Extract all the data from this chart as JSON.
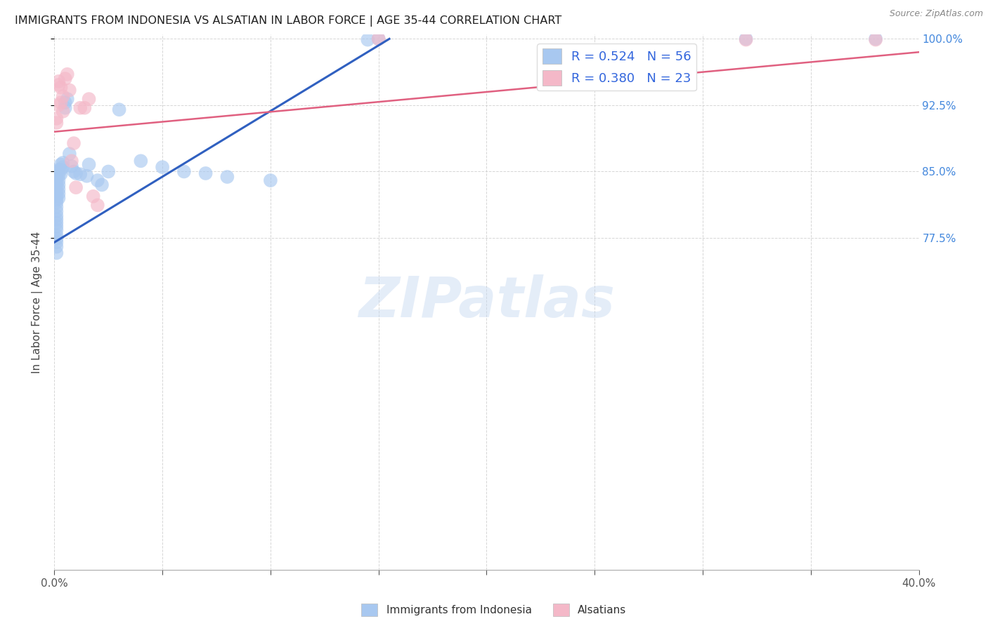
{
  "title": "IMMIGRANTS FROM INDONESIA VS ALSATIAN IN LABOR FORCE | AGE 35-44 CORRELATION CHART",
  "source": "Source: ZipAtlas.com",
  "ylabel": "In Labor Force | Age 35-44",
  "watermark": "ZIPatlas",
  "xlim": [
    0.0,
    0.4
  ],
  "ylim": [
    0.4,
    1.005
  ],
  "yticks": [
    1.0,
    0.925,
    0.85,
    0.775
  ],
  "yticklabels": [
    "100.0%",
    "92.5%",
    "85.0%",
    "77.5%"
  ],
  "legend_r_blue": "R = 0.524",
  "legend_n_blue": "N = 56",
  "legend_r_pink": "R = 0.380",
  "legend_n_pink": "N = 23",
  "blue_color": "#a8c8f0",
  "pink_color": "#f4b8c8",
  "blue_line_color": "#3060c0",
  "pink_line_color": "#e06080",
  "grid_color": "#cccccc",
  "title_color": "#202020",
  "right_label_color": "#4488dd",
  "background": "#ffffff",
  "indonesia_x": [
    0.001,
    0.001,
    0.001,
    0.001,
    0.001,
    0.001,
    0.001,
    0.001,
    0.001,
    0.001,
    0.001,
    0.001,
    0.001,
    0.001,
    0.001,
    0.001,
    0.001,
    0.001,
    0.001,
    0.001,
    0.002,
    0.002,
    0.002,
    0.002,
    0.002,
    0.002,
    0.002,
    0.003,
    0.003,
    0.003,
    0.004,
    0.004,
    0.005,
    0.005,
    0.006,
    0.007,
    0.008,
    0.009,
    0.01,
    0.012,
    0.015,
    0.016,
    0.02,
    0.022,
    0.025,
    0.03,
    0.04,
    0.05,
    0.06,
    0.07,
    0.08,
    0.1,
    0.145,
    0.15,
    0.32,
    0.38
  ],
  "indonesia_y": [
    0.85,
    0.845,
    0.84,
    0.835,
    0.828,
    0.822,
    0.818,
    0.815,
    0.81,
    0.805,
    0.8,
    0.796,
    0.792,
    0.788,
    0.784,
    0.778,
    0.774,
    0.77,
    0.765,
    0.758,
    0.852,
    0.846,
    0.84,
    0.835,
    0.83,
    0.825,
    0.82,
    0.858,
    0.852,
    0.847,
    0.86,
    0.855,
    0.922,
    0.928,
    0.932,
    0.87,
    0.856,
    0.85,
    0.848,
    0.847,
    0.845,
    0.858,
    0.84,
    0.835,
    0.85,
    0.92,
    0.862,
    0.855,
    0.85,
    0.848,
    0.844,
    0.84,
    0.999,
    1.0,
    1.0,
    1.0
  ],
  "alsatian_x": [
    0.001,
    0.001,
    0.002,
    0.002,
    0.002,
    0.003,
    0.003,
    0.004,
    0.004,
    0.005,
    0.006,
    0.007,
    0.008,
    0.009,
    0.01,
    0.012,
    0.014,
    0.016,
    0.018,
    0.02,
    0.15,
    0.32,
    0.38
  ],
  "alsatian_y": [
    0.91,
    0.905,
    0.952,
    0.948,
    0.925,
    0.945,
    0.928,
    0.935,
    0.918,
    0.955,
    0.96,
    0.942,
    0.862,
    0.882,
    0.832,
    0.922,
    0.922,
    0.932,
    0.822,
    0.812,
    1.0,
    0.999,
    0.999
  ],
  "blue_line_x0": 0.0,
  "blue_line_y0": 0.77,
  "blue_line_x1": 0.155,
  "blue_line_y1": 1.0,
  "pink_line_x0": 0.0,
  "pink_line_y0": 0.895,
  "pink_line_x1": 0.4,
  "pink_line_y1": 0.985
}
